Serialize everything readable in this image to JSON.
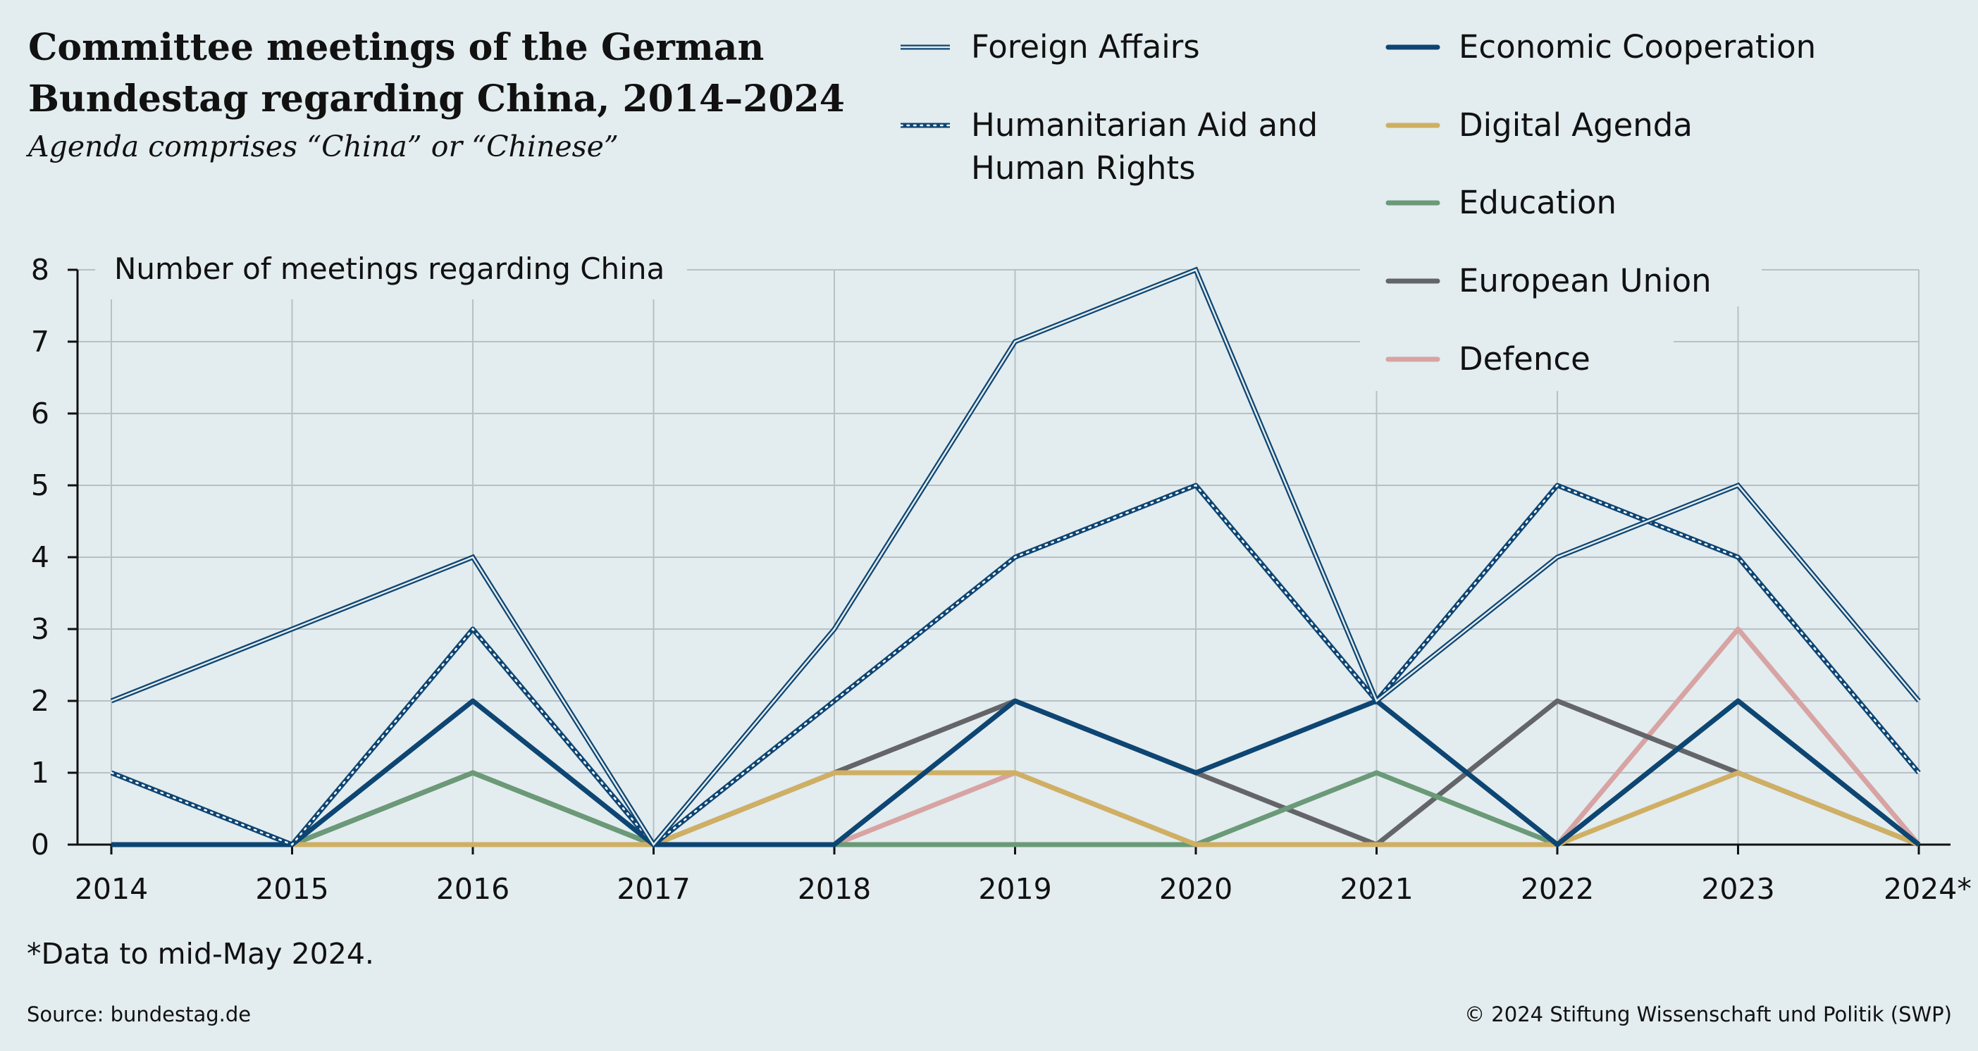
{
  "title_line1": "Committee meetings of the German",
  "title_line2": "Bundestag regarding China, 2014–2024",
  "subtitle": "Agenda comprises “China” or “Chinese”",
  "footnote": "*Data to mid-May 2024.",
  "source": "Source: bundestag.de",
  "copyright": "© 2024 Stiftung Wissenschaft und Politik (SWP)",
  "legend_line2": {
    "humanitarian_aid_and_human_rights": "Human Rights"
  },
  "chart_data": {
    "type": "line",
    "title": "Committee meetings of the German Bundestag regarding China, 2014–2024",
    "subtitle": "Agenda comprises “China” or “Chinese”",
    "xlabel": "",
    "ylabel": "Number of meetings regarding China",
    "ylim": [
      0,
      8
    ],
    "yticks": [
      "0",
      "1",
      "2",
      "3",
      "4",
      "5",
      "6",
      "7",
      "8"
    ],
    "categories": [
      "2014",
      "2015",
      "2016",
      "2017",
      "2018",
      "2019",
      "2020",
      "2021",
      "2022",
      "2023",
      "2024*"
    ],
    "grid": true,
    "legend_position": "top-right",
    "series": [
      {
        "name": "Foreign Affairs",
        "values": [
          2,
          3,
          4,
          0,
          3,
          7,
          8,
          2,
          4,
          5,
          2
        ],
        "color": "#0d4573",
        "style": "double"
      },
      {
        "name": "Humanitarian Aid and Human Rights",
        "values": [
          1,
          0,
          3,
          0,
          2,
          4,
          5,
          2,
          5,
          4,
          1
        ],
        "color": "#0d4573",
        "style": "dotted"
      },
      {
        "name": "Economic Cooperation",
        "values": [
          0,
          0,
          2,
          0,
          0,
          2,
          1,
          2,
          0,
          2,
          0
        ],
        "color": "#0d4573",
        "style": "solid"
      },
      {
        "name": "Digital Agenda",
        "values": [
          0,
          0,
          0,
          0,
          1,
          1,
          0,
          0,
          0,
          1,
          0
        ],
        "color": "#cfaf63",
        "style": "solid"
      },
      {
        "name": "Education",
        "values": [
          0,
          0,
          1,
          0,
          0,
          0,
          0,
          1,
          0,
          2,
          0
        ],
        "color": "#6a9a78",
        "style": "solid"
      },
      {
        "name": "European Union",
        "values": [
          0,
          0,
          1,
          0,
          1,
          2,
          1,
          0,
          2,
          1,
          0
        ],
        "color": "#646569",
        "style": "solid"
      },
      {
        "name": "Defence",
        "values": [
          0,
          0,
          1,
          0,
          0,
          1,
          0,
          0,
          0,
          3,
          0
        ],
        "color": "#d7a3a3",
        "style": "solid"
      }
    ]
  }
}
